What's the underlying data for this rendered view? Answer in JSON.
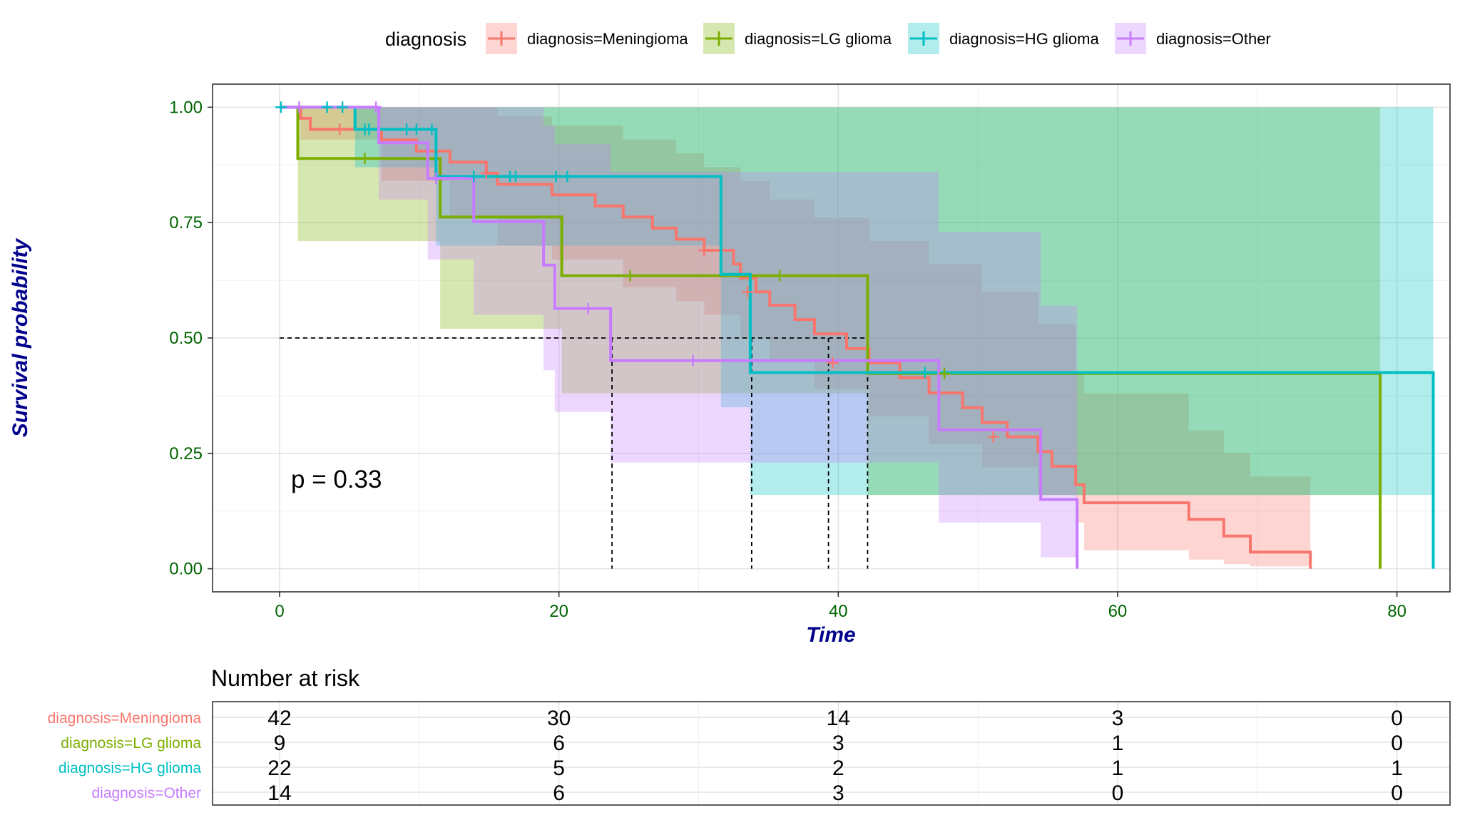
{
  "chart_data": {
    "type": "line",
    "subtype": "kaplan-meier survival curve with confidence bands",
    "xlabel": "Time",
    "ylabel": "Survival probability",
    "xlim": [
      -4.8,
      83.8
    ],
    "ylim": [
      -0.05,
      1.05
    ],
    "xticks": [
      "0",
      "20",
      "40",
      "60",
      "80"
    ],
    "yticks": [
      "0.00",
      "0.25",
      "0.50",
      "0.75",
      "1.00"
    ],
    "grid": true,
    "legend": {
      "title": "diagnosis",
      "position": "top"
    },
    "annotation": "p = 0.33",
    "median_lines": [
      23.8,
      33.8,
      39.3,
      42.1
    ],
    "series": [
      {
        "name": "diagnosis=Meningioma",
        "color": "#F8766D",
        "steps": [
          [
            0,
            1.0
          ],
          [
            1.5,
            0.976
          ],
          [
            2.2,
            0.952
          ],
          [
            7.3,
            0.929
          ],
          [
            9.8,
            0.905
          ],
          [
            12.2,
            0.881
          ],
          [
            14.8,
            0.857
          ],
          [
            15.6,
            0.833
          ],
          [
            19.5,
            0.81
          ],
          [
            22.6,
            0.786
          ],
          [
            24.6,
            0.762
          ],
          [
            26.7,
            0.738
          ],
          [
            28.4,
            0.714
          ],
          [
            30.4,
            0.69
          ],
          [
            32.5,
            0.66
          ],
          [
            33.0,
            0.63
          ],
          [
            34.1,
            0.6
          ],
          [
            35.1,
            0.571
          ],
          [
            36.9,
            0.54
          ],
          [
            38.3,
            0.509
          ],
          [
            40.6,
            0.477
          ],
          [
            42.2,
            0.446
          ],
          [
            44.4,
            0.414
          ],
          [
            46.5,
            0.381
          ],
          [
            48.9,
            0.349
          ],
          [
            50.3,
            0.317
          ],
          [
            52.1,
            0.286
          ],
          [
            54.3,
            0.254
          ],
          [
            55.3,
            0.222
          ],
          [
            57.0,
            0.182
          ],
          [
            57.6,
            0.143
          ],
          [
            65.1,
            0.107
          ],
          [
            67.6,
            0.071
          ],
          [
            69.5,
            0.036
          ],
          [
            73.8,
            0.0
          ]
        ],
        "end": 73.8,
        "ci_steps": [
          [
            0,
            1.0,
            1.0
          ],
          [
            1.5,
            0.93,
            1.0
          ],
          [
            7.3,
            0.84,
            1.0
          ],
          [
            12.2,
            0.76,
            1.0
          ],
          [
            15.6,
            0.7,
            0.98
          ],
          [
            19.5,
            0.67,
            0.96
          ],
          [
            24.6,
            0.61,
            0.93
          ],
          [
            28.4,
            0.58,
            0.9
          ],
          [
            30.4,
            0.55,
            0.87
          ],
          [
            33.0,
            0.5,
            0.84
          ],
          [
            35.1,
            0.45,
            0.8
          ],
          [
            38.3,
            0.39,
            0.76
          ],
          [
            42.2,
            0.33,
            0.71
          ],
          [
            46.5,
            0.27,
            0.66
          ],
          [
            50.3,
            0.22,
            0.6
          ],
          [
            54.3,
            0.16,
            0.53
          ],
          [
            57.0,
            0.1,
            0.42
          ],
          [
            57.6,
            0.04,
            0.38
          ],
          [
            65.1,
            0.02,
            0.3
          ],
          [
            67.6,
            0.01,
            0.25
          ],
          [
            69.5,
            0.005,
            0.2
          ]
        ],
        "censored": [
          [
            4.3,
            0.952
          ],
          [
            14.8,
            0.857
          ],
          [
            30.4,
            0.69
          ],
          [
            33.5,
            0.6
          ],
          [
            39.6,
            0.446
          ],
          [
            51.1,
            0.286
          ]
        ]
      },
      {
        "name": "diagnosis=LG glioma",
        "color": "#7CAE00",
        "steps": [
          [
            0,
            1.0
          ],
          [
            1.3,
            0.889
          ],
          [
            11.5,
            0.762
          ],
          [
            20.2,
            0.635
          ],
          [
            42.1,
            0.423
          ],
          [
            78.8,
            0.0
          ]
        ],
        "end": 78.8,
        "ci_steps": [
          [
            0,
            1.0,
            1.0
          ],
          [
            1.3,
            0.71,
            1.0
          ],
          [
            11.5,
            0.52,
            1.0
          ],
          [
            20.2,
            0.38,
            1.0
          ],
          [
            42.1,
            0.16,
            1.0
          ]
        ],
        "censored": [
          [
            6.1,
            0.889
          ],
          [
            25.1,
            0.635
          ],
          [
            35.8,
            0.635
          ],
          [
            47.6,
            0.423
          ]
        ]
      },
      {
        "name": "diagnosis=HG glioma",
        "color": "#00BFC4",
        "steps": [
          [
            0,
            1.0
          ],
          [
            5.4,
            0.952
          ],
          [
            11.2,
            0.85
          ],
          [
            31.6,
            0.638
          ],
          [
            33.7,
            0.425
          ],
          [
            82.6,
            0.0
          ]
        ],
        "end": 82.6,
        "ci_steps": [
          [
            0,
            1.0,
            1.0
          ],
          [
            5.4,
            0.87,
            1.0
          ],
          [
            11.2,
            0.7,
            1.0
          ],
          [
            31.6,
            0.35,
            1.0
          ],
          [
            33.7,
            0.16,
            1.0
          ]
        ],
        "censored": [
          [
            0.1,
            1.0
          ],
          [
            3.4,
            1.0
          ],
          [
            4.5,
            1.0
          ],
          [
            6.1,
            0.952
          ],
          [
            6.4,
            0.952
          ],
          [
            9.1,
            0.952
          ],
          [
            9.8,
            0.952
          ],
          [
            10.9,
            0.952
          ],
          [
            13.9,
            0.85
          ],
          [
            16.5,
            0.85
          ],
          [
            16.9,
            0.85
          ],
          [
            19.8,
            0.85
          ],
          [
            20.6,
            0.85
          ],
          [
            46.2,
            0.425
          ]
        ]
      },
      {
        "name": "diagnosis=Other",
        "color": "#C77CFF",
        "steps": [
          [
            0,
            1.0
          ],
          [
            7.1,
            0.923
          ],
          [
            10.6,
            0.846
          ],
          [
            13.9,
            0.752
          ],
          [
            18.9,
            0.658
          ],
          [
            19.7,
            0.564
          ],
          [
            23.7,
            0.451
          ],
          [
            47.2,
            0.301
          ],
          [
            54.5,
            0.15
          ],
          [
            57.1,
            0.0
          ]
        ],
        "end": 57.1,
        "ci_steps": [
          [
            0,
            1.0,
            1.0
          ],
          [
            7.1,
            0.8,
            1.0
          ],
          [
            10.6,
            0.67,
            1.0
          ],
          [
            13.9,
            0.55,
            1.0
          ],
          [
            18.9,
            0.43,
            0.96
          ],
          [
            19.7,
            0.34,
            0.92
          ],
          [
            23.7,
            0.23,
            0.86
          ],
          [
            47.2,
            0.1,
            0.73
          ],
          [
            54.5,
            0.025,
            0.57
          ]
        ],
        "censored": [
          [
            1.4,
            1.0
          ],
          [
            6.9,
            1.0
          ],
          [
            11.2,
            0.846
          ],
          [
            22.1,
            0.564
          ],
          [
            29.6,
            0.451
          ]
        ]
      }
    ],
    "risk_table": {
      "title": "Number at risk",
      "times": [
        0,
        20,
        40,
        60,
        80
      ],
      "rows": [
        {
          "label": "diagnosis=Meningioma",
          "counts": [
            "42",
            "30",
            "14",
            "3",
            "0"
          ]
        },
        {
          "label": "diagnosis=LG glioma",
          "counts": [
            "9",
            "6",
            "3",
            "1",
            "0"
          ]
        },
        {
          "label": "diagnosis=HG glioma",
          "counts": [
            "22",
            "5",
            "2",
            "1",
            "1"
          ]
        },
        {
          "label": "diagnosis=Other",
          "counts": [
            "14",
            "6",
            "3",
            "0",
            "0"
          ]
        }
      ]
    }
  }
}
